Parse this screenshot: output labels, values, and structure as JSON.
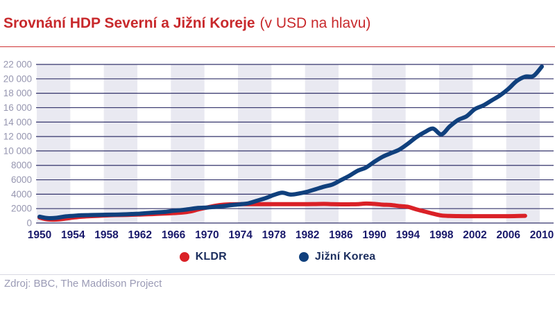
{
  "header": {
    "title_bold": "Srovnání HDP Severní a Jižní Koreje",
    "title_suffix": "(v USD na hlavu)",
    "accent_color": "#c8292c"
  },
  "legend": {
    "items": [
      {
        "label": "KLDR",
        "color": "#da2127"
      },
      {
        "label": "Jižní Korea",
        "color": "#10407d"
      }
    ]
  },
  "footer": {
    "source": "Zdroj: BBC, The Maddison Project"
  },
  "chart_data": {
    "type": "line",
    "title": "Srovnání HDP Severní a Jižní Koreje (v USD na hlavu)",
    "xlabel": "",
    "ylabel": "USD na hlavu",
    "xlim": [
      1950,
      2010
    ],
    "ylim": [
      0,
      22000
    ],
    "x_ticks": [
      1950,
      1954,
      1958,
      1962,
      1966,
      1970,
      1974,
      1978,
      1982,
      1986,
      1990,
      1994,
      1998,
      2002,
      2006,
      2010
    ],
    "y_ticks": [
      0,
      2000,
      4000,
      6000,
      8000,
      10000,
      12000,
      14000,
      16000,
      18000,
      20000,
      22000
    ],
    "grid": "horizontal-navy-lines",
    "background_bands": {
      "color": "#e9e9f1",
      "width_years": 4,
      "count": 15
    },
    "legend_position": "bottom-center",
    "colors": {
      "gridline": "#32326a",
      "y_tick_label": "#9696b0",
      "x_tick_label": "#19196b",
      "band": "#e9e9f1"
    },
    "series": [
      {
        "name": "KLDR",
        "color": "#da2127",
        "start_year": 1950,
        "end_year": 2008,
        "values": [
          760,
          500,
          480,
          600,
          750,
          880,
          950,
          1000,
          1060,
          1100,
          1120,
          1150,
          1180,
          1220,
          1270,
          1320,
          1380,
          1450,
          1600,
          1900,
          2150,
          2400,
          2550,
          2600,
          2620,
          2620,
          2620,
          2620,
          2620,
          2620,
          2620,
          2620,
          2620,
          2630,
          2650,
          2620,
          2600,
          2600,
          2620,
          2700,
          2650,
          2550,
          2500,
          2350,
          2250,
          1900,
          1600,
          1300,
          1050,
          980,
          960,
          950,
          950,
          950,
          950,
          950,
          950,
          970,
          1000
        ]
      },
      {
        "name": "Jižní Korea",
        "color": "#10407d",
        "start_year": 1950,
        "end_year": 2010,
        "values": [
          880,
          680,
          720,
          900,
          1000,
          1080,
          1100,
          1130,
          1150,
          1170,
          1200,
          1250,
          1300,
          1400,
          1480,
          1550,
          1700,
          1800,
          1950,
          2100,
          2150,
          2250,
          2350,
          2500,
          2600,
          2750,
          3100,
          3450,
          3900,
          4200,
          3950,
          4100,
          4350,
          4700,
          5050,
          5350,
          5950,
          6550,
          7250,
          7700,
          8500,
          9200,
          9700,
          10200,
          11000,
          11900,
          12600,
          13100,
          12300,
          13400,
          14300,
          14800,
          15800,
          16300,
          17000,
          17700,
          18600,
          19700,
          20300,
          20400,
          21700
        ]
      }
    ]
  }
}
